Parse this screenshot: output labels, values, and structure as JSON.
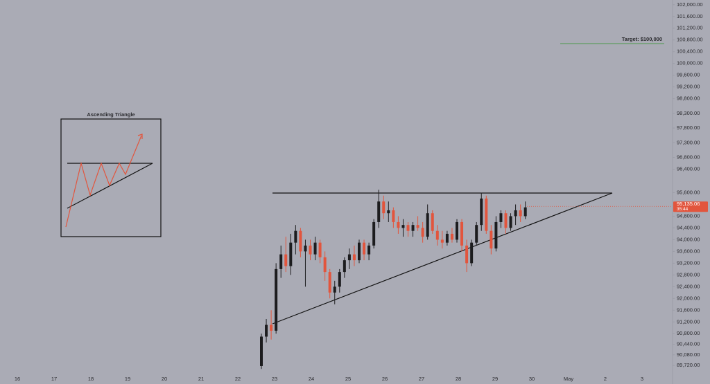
{
  "chart_data": {
    "type": "candlestick",
    "annotations": [
      "Ascending Triangle",
      "Target: $100,000"
    ],
    "last_price": {
      "value": 95135.06,
      "label": "95,135.06"
    },
    "countdown": "35:44",
    "up_color": "#1c1c1e",
    "down_color": "#e2553d",
    "categories": [
      "16",
      "17",
      "18",
      "19",
      "20",
      "21",
      "22",
      "23",
      "24",
      "25",
      "26",
      "27",
      "28",
      "29",
      "30",
      "May",
      "2",
      "3"
    ],
    "ylim": [
      89440,
      102160
    ],
    "yticks": [
      {
        "value": 102000,
        "label": "102,000.00"
      },
      {
        "value": 101600,
        "label": "101,600.00"
      },
      {
        "value": 101200,
        "label": "101,200.00"
      },
      {
        "value": 100800,
        "label": "100,800.00"
      },
      {
        "value": 100400,
        "label": "100,400.00"
      },
      {
        "value": 100000,
        "label": "100,000.00"
      },
      {
        "value": 99600,
        "label": "99,600.00"
      },
      {
        "value": 99200,
        "label": "99,200.00"
      },
      {
        "value": 98800,
        "label": "98,800.00"
      },
      {
        "value": 98300,
        "label": "98,300.00"
      },
      {
        "value": 97800,
        "label": "97,800.00"
      },
      {
        "value": 97300,
        "label": "97,300.00"
      },
      {
        "value": 96800,
        "label": "96,800.00"
      },
      {
        "value": 96400,
        "label": "96,400.00"
      },
      {
        "value": 95600,
        "label": "95,600.00"
      },
      {
        "value": 94800,
        "label": "94,800.00"
      },
      {
        "value": 94400,
        "label": "94,400.00"
      },
      {
        "value": 94000,
        "label": "94,000.00"
      },
      {
        "value": 93600,
        "label": "93,600.00"
      },
      {
        "value": 93200,
        "label": "93,200.00"
      },
      {
        "value": 92800,
        "label": "92,800.00"
      },
      {
        "value": 92400,
        "label": "92,400.00"
      },
      {
        "value": 92000,
        "label": "92,000.00"
      },
      {
        "value": 91600,
        "label": "91,600.00"
      },
      {
        "value": 91200,
        "label": "91,200.00"
      },
      {
        "value": 90800,
        "label": "90,800.00"
      },
      {
        "value": 90440,
        "label": "90,440.00"
      },
      {
        "value": 90080,
        "label": "90,080.00"
      },
      {
        "value": 89720,
        "label": "89,720.00"
      }
    ],
    "ohlc": [
      [
        89700,
        90800,
        89600,
        90700
      ],
      [
        90700,
        91300,
        90500,
        91100
      ],
      [
        91100,
        91600,
        90600,
        90900
      ],
      [
        90900,
        93200,
        90800,
        93000
      ],
      [
        93000,
        93800,
        92700,
        93500
      ],
      [
        93500,
        94100,
        92900,
        93100
      ],
      [
        93100,
        94200,
        92800,
        93900
      ],
      [
        93900,
        94500,
        93500,
        94300
      ],
      [
        94300,
        94400,
        93400,
        93600
      ],
      [
        93600,
        94000,
        92400,
        93800
      ],
      [
        93800,
        94000,
        93300,
        93500
      ],
      [
        93500,
        94100,
        93300,
        93900
      ],
      [
        93900,
        94000,
        93200,
        93400
      ],
      [
        93400,
        93600,
        92600,
        92900
      ],
      [
        92900,
        93000,
        92000,
        92200
      ],
      [
        92200,
        92600,
        91800,
        92400
      ],
      [
        92400,
        93000,
        92200,
        92900
      ],
      [
        92900,
        93400,
        92700,
        93300
      ],
      [
        93300,
        93700,
        93000,
        93500
      ],
      [
        93500,
        93800,
        93100,
        93300
      ],
      [
        93300,
        94000,
        93200,
        93900
      ],
      [
        93900,
        94000,
        93300,
        93500
      ],
      [
        93500,
        93900,
        93300,
        93800
      ],
      [
        93800,
        94700,
        93700,
        94600
      ],
      [
        94600,
        95700,
        94400,
        95300
      ],
      [
        95300,
        95500,
        94700,
        94900
      ],
      [
        94900,
        95300,
        94600,
        95000
      ],
      [
        95000,
        95100,
        94400,
        94600
      ],
      [
        94600,
        94800,
        94200,
        94400
      ],
      [
        94400,
        94700,
        94100,
        94500
      ],
      [
        94500,
        94600,
        94100,
        94300
      ],
      [
        94300,
        94600,
        94100,
        94500
      ],
      [
        94500,
        94800,
        94300,
        94400
      ],
      [
        94400,
        94600,
        93900,
        94100
      ],
      [
        94100,
        95200,
        94000,
        94900
      ],
      [
        94900,
        95000,
        94200,
        94300
      ],
      [
        94300,
        94500,
        93800,
        94000
      ],
      [
        94000,
        94300,
        93700,
        93900
      ],
      [
        93900,
        94300,
        93800,
        94200
      ],
      [
        94200,
        94400,
        93900,
        94000
      ],
      [
        94000,
        94700,
        93900,
        94600
      ],
      [
        94600,
        94700,
        93600,
        93800
      ],
      [
        93800,
        94000,
        92900,
        93200
      ],
      [
        93200,
        94000,
        93100,
        93900
      ],
      [
        93900,
        94600,
        93800,
        94500
      ],
      [
        94500,
        95600,
        94300,
        95400
      ],
      [
        95400,
        95500,
        94200,
        94300
      ],
      [
        94300,
        94500,
        93500,
        93700
      ],
      [
        93700,
        94800,
        93600,
        94600
      ],
      [
        94600,
        95000,
        94400,
        94900
      ],
      [
        94900,
        95000,
        94200,
        94400
      ],
      [
        94400,
        94900,
        94300,
        94800
      ],
      [
        94800,
        95200,
        94500,
        95000
      ],
      [
        95000,
        95200,
        94600,
        94800
      ],
      [
        94800,
        95300,
        94700,
        95100
      ]
    ]
  }
}
